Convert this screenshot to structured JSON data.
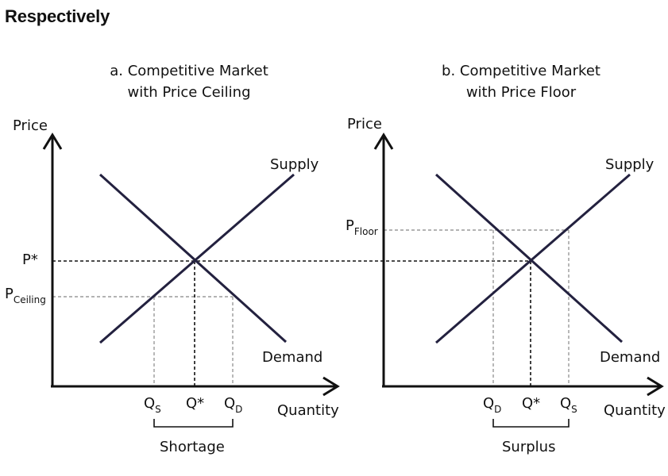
{
  "heading": "Respectively",
  "colors": {
    "curve": "#23213f",
    "axis": "#111111",
    "guide_dark": "#111111",
    "guide_light": "#9a9a9a"
  },
  "panels": [
    {
      "title_line1": "a. Competitive Market",
      "title_line2": "with Price Ceiling",
      "y_axis_label": "Price",
      "x_axis_label": "Quantity",
      "supply_label": "Supply",
      "demand_label": "Demand",
      "p_equilibrium": "P*",
      "p_control_main": "P",
      "p_control_sub": "Ceiling",
      "q_left_main": "Q",
      "q_left_sub": "S",
      "q_equilibrium": "Q*",
      "q_right_main": "Q",
      "q_right_sub": "D",
      "gap_label": "Shortage"
    },
    {
      "title_line1": "b. Competitive Market",
      "title_line2": "with Price Floor",
      "y_axis_label": "Price",
      "x_axis_label": "Quantity",
      "supply_label": "Supply",
      "demand_label": "Demand",
      "p_control_main": "P",
      "p_control_sub": "Floor",
      "q_left_main": "Q",
      "q_left_sub": "D",
      "q_equilibrium": "Q*",
      "q_right_main": "Q",
      "q_right_sub": "S",
      "gap_label": "Surplus"
    }
  ]
}
